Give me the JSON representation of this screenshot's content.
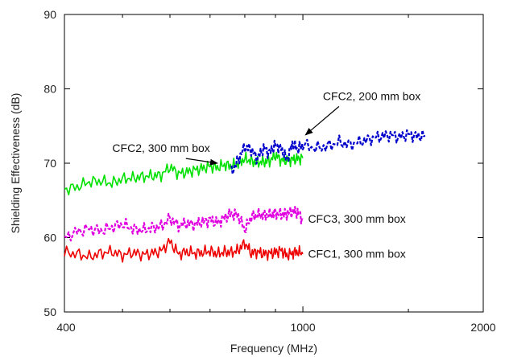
{
  "chart_data": {
    "type": "line",
    "title": "",
    "xlabel": "Frequency (MHz)",
    "ylabel": "Shielding Effectiveness (dB)",
    "xscale": "log",
    "xlim": [
      400,
      2000
    ],
    "ylim": [
      50,
      90
    ],
    "x_ticks": [
      400,
      1000,
      2000
    ],
    "x_tick_labels": [
      "400",
      "1000",
      "2000"
    ],
    "y_ticks": [
      50,
      60,
      70,
      80,
      90
    ],
    "y_tick_labels": [
      "50",
      "60",
      "70",
      "80",
      "90"
    ],
    "grid": false,
    "legend": "none",
    "series": [
      {
        "name": "CFC2, 300 mm box",
        "color": "#00e000",
        "style": "solid",
        "x": [
          400,
          420,
          440,
          460,
          480,
          500,
          520,
          540,
          560,
          580,
          600,
          620,
          640,
          660,
          680,
          700,
          720,
          740,
          760,
          780,
          800,
          820,
          840,
          860,
          880,
          900,
          920,
          940,
          960,
          980,
          1000
        ],
        "y": [
          66.5,
          66.8,
          67.5,
          67.6,
          67.3,
          67.9,
          68.0,
          68.2,
          68.3,
          68.4,
          69.5,
          68.6,
          68.8,
          69.1,
          69.3,
          69.6,
          69.4,
          69.8,
          69.6,
          70.0,
          70.6,
          70.3,
          70.1,
          70.2,
          70.3,
          71.1,
          70.4,
          70.4,
          70.5,
          70.6,
          70.7
        ],
        "label": "CFC2, 300 mm box",
        "label_anchor": [
          700,
          71.5
        ],
        "arrow_to": [
          720,
          70.0
        ]
      },
      {
        "name": "CFC2, 200 mm box",
        "color": "#0000cc",
        "style": "dashed",
        "x": [
          760,
          780,
          800,
          820,
          840,
          860,
          880,
          900,
          920,
          940,
          960,
          980,
          1000,
          1050,
          1100,
          1150,
          1200,
          1250,
          1300,
          1350,
          1400,
          1450,
          1500,
          1550,
          1600
        ],
        "y": [
          68.8,
          70.5,
          72.2,
          71.8,
          70.6,
          72.0,
          71.4,
          72.5,
          72.0,
          70.4,
          72.6,
          71.9,
          72.5,
          72.0,
          72.3,
          72.8,
          72.5,
          72.9,
          73.3,
          73.6,
          73.8,
          73.5,
          73.9,
          73.6,
          73.7
        ],
        "label": "CFC2, 200 mm box",
        "label_anchor": [
          1080,
          78.5
        ],
        "arrow_to": [
          1010,
          73.8
        ]
      },
      {
        "name": "CFC3, 300 mm box",
        "color": "#e000e0",
        "style": "dashed",
        "x": [
          400,
          420,
          440,
          460,
          480,
          500,
          520,
          540,
          560,
          580,
          600,
          620,
          640,
          660,
          680,
          700,
          720,
          740,
          760,
          780,
          800,
          820,
          840,
          860,
          880,
          900,
          920,
          940,
          960,
          980,
          1000
        ],
        "y": [
          60.0,
          60.8,
          61.2,
          60.9,
          61.4,
          61.8,
          61.2,
          61.0,
          61.3,
          61.5,
          62.6,
          61.6,
          61.9,
          61.8,
          62.1,
          62.4,
          62.0,
          62.7,
          63.2,
          63.0,
          61.0,
          62.8,
          63.0,
          63.1,
          63.0,
          63.3,
          63.1,
          63.2,
          63.5,
          63.4,
          62.5
        ],
        "label": "CFC3, 300 mm box",
        "label_anchor": [
          1020,
          62.0
        ]
      },
      {
        "name": "CFC1, 300 mm box",
        "color": "#ee0000",
        "style": "solid",
        "x": [
          400,
          420,
          440,
          460,
          480,
          500,
          520,
          540,
          560,
          580,
          600,
          620,
          640,
          660,
          680,
          700,
          720,
          740,
          760,
          780,
          800,
          820,
          840,
          860,
          880,
          900,
          920,
          940,
          960,
          980,
          1000
        ],
        "y": [
          58.0,
          57.8,
          57.4,
          57.9,
          58.1,
          57.6,
          58.0,
          57.7,
          57.9,
          58.2,
          59.5,
          57.8,
          58.1,
          57.9,
          58.0,
          58.2,
          57.8,
          58.1,
          58.0,
          58.3,
          59.3,
          57.9,
          58.1,
          57.8,
          57.9,
          58.0,
          58.3,
          57.6,
          57.9,
          58.1,
          57.8
        ],
        "label": "CFC1, 300 mm box",
        "label_anchor": [
          1020,
          57.3
        ]
      }
    ]
  }
}
